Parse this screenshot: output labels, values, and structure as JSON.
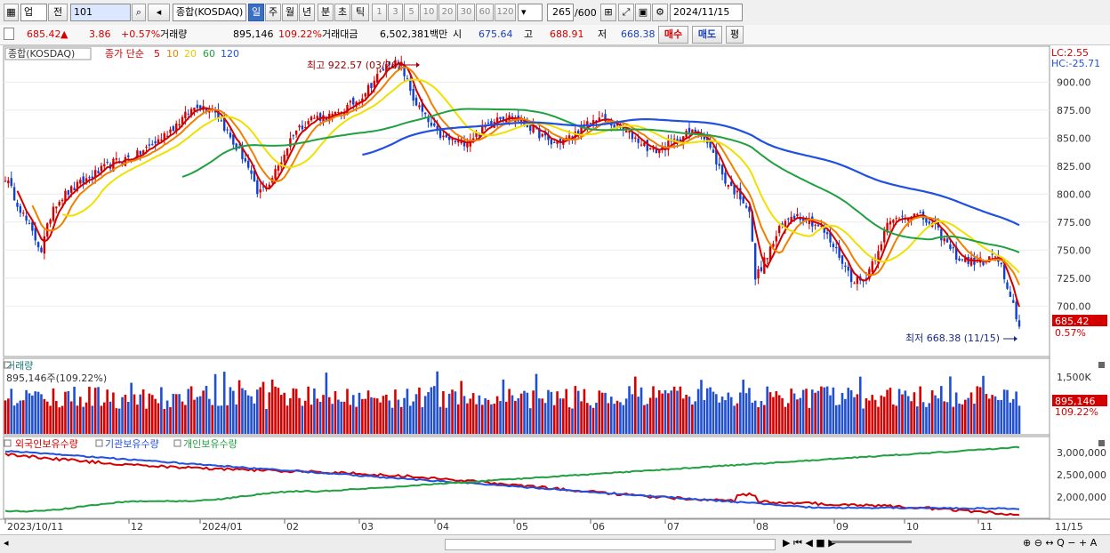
{
  "toolbar": {
    "market": "업",
    "prev": "전",
    "code": "101",
    "name": "종합(KOSDAQ)",
    "periods": [
      "일",
      "주",
      "월",
      "년",
      "분",
      "초",
      "틱"
    ],
    "intervals": [
      "1",
      "3",
      "5",
      "10",
      "20",
      "30",
      "60",
      "120"
    ],
    "count": "265",
    "count_total": "/600",
    "date": "2024/11/15"
  },
  "infobar": {
    "price": "685.42",
    "change": "3.86",
    "change_pct": "+0.57%",
    "volume_label": "거래량",
    "volume": "895,146",
    "volume_pct": "109.22%",
    "amount_label": "거래대금",
    "amount": "6,502,381백만",
    "open_label": "시",
    "open": "675.64",
    "high_label": "고",
    "high": "688.91",
    "low_label": "저",
    "low": "668.38",
    "buy": "매수",
    "sell": "매도",
    "avg": "평"
  },
  "statusbar": {
    "nav": "▶ ⏮ ◀ ■ ▶",
    "tools": "⊕ ⊖ ↔ Q − + A"
  },
  "chart_data": {
    "type": "line",
    "price_panel": {
      "title": "종합(KOSDAQ)",
      "ma_label": "종가 단순",
      "ma_periods": [
        "5",
        "10",
        "20",
        "60",
        "120"
      ],
      "ma_colors": [
        "#d40000",
        "#f08000",
        "#f0e000",
        "#20a040",
        "#2050e0"
      ],
      "lc_label": "LC:2.55",
      "hc_label": "HC:-25.71",
      "high_note": "최고 922.57 (03/26)",
      "low_note": "최저 668.38 (11/15)",
      "last_price": "685.42",
      "last_pct": "0.57%",
      "ylim": [
        655,
        932
      ],
      "yticks": [
        "900.00",
        "875.00",
        "850.00",
        "825.00",
        "800.00",
        "775.00",
        "750.00",
        "725.00",
        "700.00"
      ],
      "ytick_values": [
        900,
        875,
        850,
        825,
        800,
        775,
        750,
        725,
        700
      ]
    },
    "volume_panel": {
      "title": "거래량",
      "info": "895,146주(109.22%)",
      "ytick": "1,500K",
      "last": "895,146",
      "last_pct": "109.22%"
    },
    "holdings_panel": {
      "series_names": [
        "외국인보유수량",
        "기관보유수량",
        "개인보유수량"
      ],
      "colors": [
        "#d40000",
        "#2050e0",
        "#20a040"
      ],
      "yticks": [
        "3,000,000",
        "2,500,000",
        "2,000,000"
      ]
    },
    "x_labels": [
      "2023/10/11",
      "12",
      "2024/01",
      "02",
      "03",
      "04",
      "05",
      "06",
      "07",
      "08",
      "09",
      "10",
      "11"
    ],
    "x_last": "11/15",
    "price_anchors": [
      [
        0,
        815
      ],
      [
        8,
        770
      ],
      [
        12,
        750
      ],
      [
        16,
        790
      ],
      [
        20,
        800
      ],
      [
        28,
        815
      ],
      [
        36,
        828
      ],
      [
        44,
        835
      ],
      [
        52,
        850
      ],
      [
        58,
        865
      ],
      [
        64,
        880
      ],
      [
        70,
        875
      ],
      [
        76,
        845
      ],
      [
        80,
        830
      ],
      [
        84,
        800
      ],
      [
        88,
        810
      ],
      [
        92,
        830
      ],
      [
        96,
        855
      ],
      [
        102,
        868
      ],
      [
        110,
        870
      ],
      [
        118,
        885
      ],
      [
        124,
        905
      ],
      [
        128,
        918
      ],
      [
        132,
        915
      ],
      [
        136,
        885
      ],
      [
        142,
        860
      ],
      [
        146,
        850
      ],
      [
        152,
        845
      ],
      [
        158,
        855
      ],
      [
        164,
        870
      ],
      [
        170,
        868
      ],
      [
        176,
        858
      ],
      [
        182,
        845
      ],
      [
        188,
        850
      ],
      [
        194,
        862
      ],
      [
        198,
        868
      ],
      [
        204,
        860
      ],
      [
        210,
        850
      ],
      [
        216,
        838
      ],
      [
        222,
        845
      ],
      [
        228,
        855
      ],
      [
        232,
        855
      ],
      [
        236,
        835
      ],
      [
        240,
        812
      ],
      [
        244,
        800
      ],
      [
        246,
        795
      ],
      [
        248,
        785
      ],
      [
        250,
        725
      ],
      [
        254,
        745
      ],
      [
        258,
        768
      ],
      [
        262,
        782
      ],
      [
        266,
        780
      ],
      [
        272,
        770
      ],
      [
        278,
        745
      ],
      [
        282,
        725
      ],
      [
        286,
        722
      ],
      [
        290,
        745
      ],
      [
        294,
        772
      ],
      [
        298,
        780
      ],
      [
        302,
        782
      ],
      [
        306,
        778
      ],
      [
        310,
        770
      ],
      [
        314,
        755
      ],
      [
        318,
        742
      ],
      [
        322,
        740
      ],
      [
        326,
        740
      ],
      [
        330,
        745
      ],
      [
        332,
        735
      ],
      [
        334,
        712
      ],
      [
        336,
        700
      ],
      [
        338,
        682
      ]
    ]
  }
}
